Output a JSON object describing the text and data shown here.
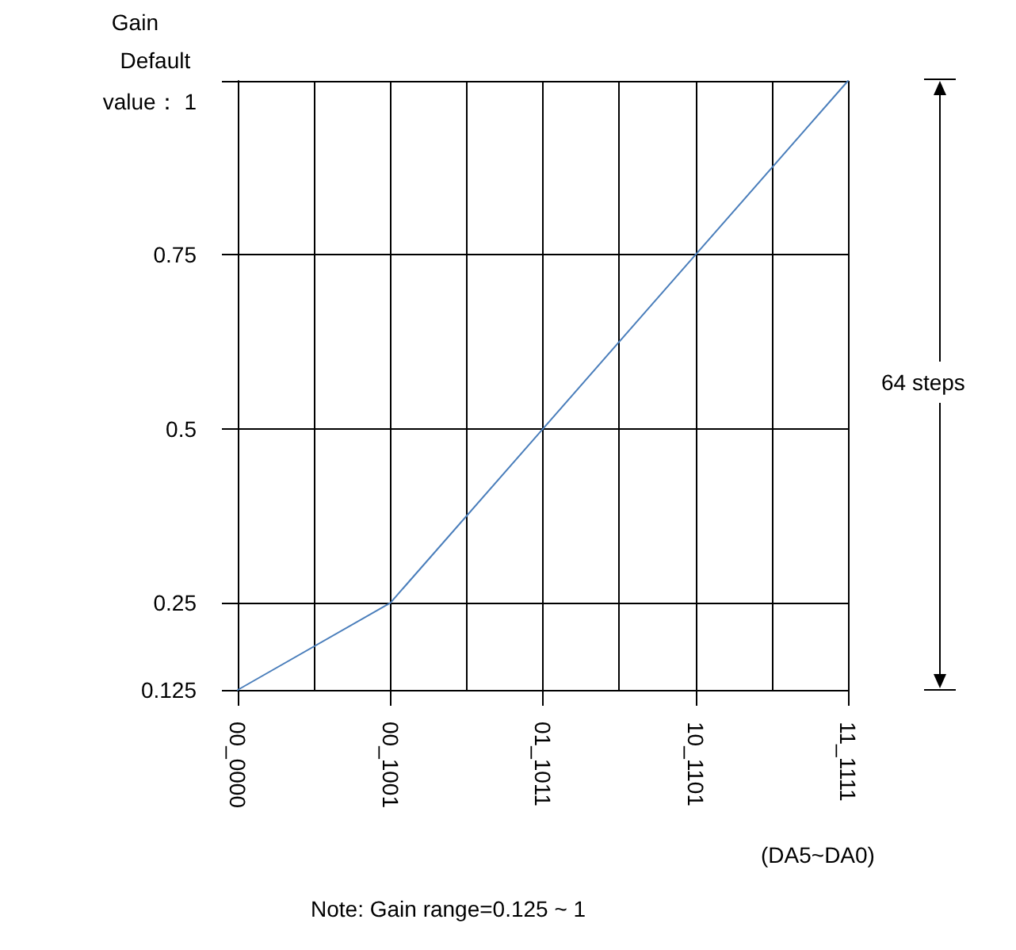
{
  "chart_data": {
    "type": "line",
    "ylabel": "Gain",
    "xlabel": "(DA5~DA0)",
    "categories": [
      "00_0000",
      null,
      "00_1001",
      null,
      "01_1011",
      null,
      "10_1101",
      null,
      "11_1111"
    ],
    "series": [
      {
        "color": "#4a7ebb",
        "values": [
          0.125,
          null,
          0.25,
          null,
          0.5,
          null,
          0.75,
          null,
          1
        ]
      }
    ],
    "ylim": [
      0.125,
      1
    ],
    "yticks": [
      0.125,
      0.25,
      0.5,
      0.75,
      {
        "value": 1,
        "label": "Default value： 1"
      }
    ],
    "grid": true,
    "marker": "none",
    "line_style": "solid",
    "annotations": [
      "64 steps",
      "Note: Gain range=0.125 ~ 1"
    ]
  }
}
